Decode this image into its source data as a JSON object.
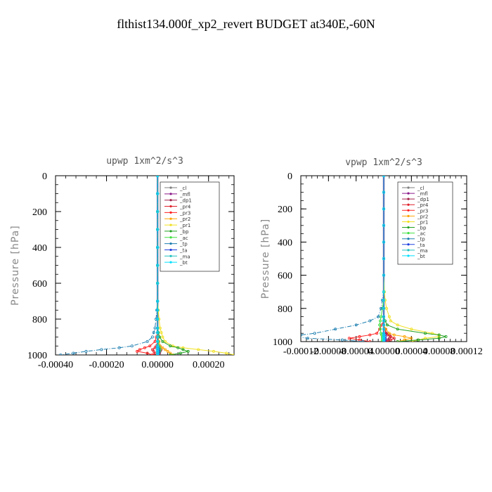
{
  "page": {
    "title": "flthist134.000f_xp2_revert  BUDGET at340E,-60N"
  },
  "chart_data": [
    {
      "type": "line",
      "subtitle": "upwp   1xm^2/s^3",
      "ylabel": "Pressure  [hPa]",
      "xlim": [
        -0.0004,
        0.0003
      ],
      "ylim": [
        1000,
        0
      ],
      "xticks": [
        -0.0004,
        -0.0002,
        0.0,
        0.0002
      ],
      "xtick_labels": [
        "-0.00040",
        "-0.00020",
        "0.00000",
        "0.00020"
      ],
      "yticks": [
        0,
        200,
        400,
        600,
        800,
        1000
      ],
      "ytick_labels": [
        "0",
        "200",
        "400",
        "600",
        "800",
        "1000"
      ],
      "legend_position": "top-right",
      "y": [
        0,
        100,
        200,
        300,
        400,
        500,
        600,
        700,
        750,
        800,
        850,
        875,
        900,
        925,
        950,
        960,
        970,
        980,
        990,
        1000
      ],
      "series": [
        {
          "name": "_cl",
          "color": "#7f7f7f",
          "marker": "+",
          "values": [
            0,
            0,
            0,
            0,
            0,
            0,
            0,
            0,
            0,
            0,
            0,
            0,
            0,
            0,
            0,
            0,
            0,
            0,
            0,
            0
          ]
        },
        {
          "name": "_mfl",
          "color": "#8b1a8b",
          "marker": "+",
          "values": [
            0,
            0,
            0,
            0,
            0,
            0,
            0,
            0,
            0,
            0,
            0,
            0,
            0,
            0,
            0,
            0,
            0,
            0,
            0,
            0
          ]
        },
        {
          "name": "_dp1",
          "color": "#a0204a",
          "marker": "+",
          "values": [
            0,
            0,
            0,
            0,
            0,
            0,
            0,
            0,
            0,
            0,
            0,
            0,
            2e-06,
            5e-06,
            1e-05,
            1.2e-05,
            1.4e-05,
            1e-05,
            8e-06,
            5e-06
          ]
        },
        {
          "name": "_pr4",
          "color": "#e0202a",
          "marker": "o",
          "values": [
            0,
            0,
            0,
            0,
            0,
            0,
            0,
            0,
            0,
            0,
            0,
            0,
            0,
            0,
            -5e-06,
            -1e-05,
            -2e-05,
            -1.5e-05,
            -1e-05,
            -2e-05
          ]
        },
        {
          "name": "_pr3",
          "color": "#ff2020",
          "marker": "v",
          "values": [
            0,
            0,
            0,
            0,
            0,
            0,
            0,
            0,
            0,
            0,
            0,
            0,
            -5e-06,
            -1e-05,
            -3e-05,
            -5e-05,
            -7e-05,
            -8e-05,
            -4e-05,
            -2e-05
          ]
        },
        {
          "name": "_pr2",
          "color": "#ffa500",
          "marker": "^",
          "values": [
            0,
            0,
            0,
            0,
            0,
            0,
            0,
            0,
            0,
            0,
            0,
            0,
            0,
            5e-06,
            1e-05,
            2e-05,
            3e-05,
            4e-05,
            5e-05,
            6e-05
          ]
        },
        {
          "name": "_pr1",
          "color": "#f0e020",
          "marker": "x",
          "values": [
            0,
            0,
            0,
            0,
            0,
            0,
            0,
            0,
            3e-06,
            6e-06,
            1e-05,
            1.5e-05,
            2e-05,
            3e-05,
            6e-05,
            0.0001,
            0.00016,
            0.00022,
            0.00027,
            0.0003
          ]
        },
        {
          "name": "_bp",
          "color": "#20a020",
          "marker": "x",
          "values": [
            0,
            0,
            0,
            0,
            0,
            0,
            0,
            0,
            0,
            0,
            0,
            3e-06,
            8e-06,
            2e-05,
            5e-05,
            8e-05,
            0.0001,
            0.00012,
            9e-05,
            5e-05
          ]
        },
        {
          "name": "_ac",
          "color": "#40e040",
          "marker": "o",
          "values": [
            0,
            0,
            0,
            0,
            0,
            0,
            0,
            0,
            0,
            0,
            0,
            0,
            0,
            2e-06,
            5e-06,
            8e-06,
            1e-05,
            8e-06,
            5e-06,
            3e-06
          ]
        },
        {
          "name": "_tp",
          "color": "#1e7fb0",
          "marker": "*",
          "values": [
            0,
            0,
            0,
            0,
            0,
            0,
            0,
            0,
            -3e-06,
            -6e-06,
            -1e-05,
            -1.5e-05,
            -2e-05,
            -4e-05,
            -0.0001,
            -0.00015,
            -0.00022,
            -0.00028,
            -0.00033,
            -0.00038
          ]
        },
        {
          "name": "_ta",
          "color": "#2040e0",
          "marker": "+",
          "values": [
            0,
            0,
            0,
            0,
            0,
            0,
            0,
            0,
            0,
            0,
            0,
            0,
            0,
            0,
            0,
            2e-06,
            4e-06,
            6e-06,
            4e-06,
            2e-06
          ]
        },
        {
          "name": "_ma",
          "color": "#20c0c0",
          "marker": "-",
          "values": [
            0,
            0,
            0,
            0,
            0,
            0,
            0,
            0,
            0,
            0,
            0,
            0,
            0,
            0,
            0,
            0,
            0,
            0,
            0,
            0
          ]
        },
        {
          "name": "_bt",
          "color": "#00e0ff",
          "marker": "o",
          "values": [
            0,
            0,
            0,
            0,
            0,
            0,
            0,
            0,
            0,
            0,
            0,
            0,
            0,
            0,
            0,
            0,
            0,
            0,
            0,
            0
          ]
        }
      ]
    },
    {
      "type": "line",
      "subtitle": "vpwp   1xm^2/s^3",
      "ylabel": "Pressure  [hPa]",
      "xlim": [
        -0.00012,
        0.00012
      ],
      "ylim": [
        1000,
        0
      ],
      "xticks": [
        -0.00012,
        -8e-05,
        -4e-05,
        0.0,
        4e-05,
        8e-05,
        0.00012
      ],
      "xtick_labels": [
        "-0.00012",
        "-0.00008",
        "-0.00004",
        "0.00000",
        "0.00004",
        "0.00008",
        "0.00012"
      ],
      "yticks": [
        0,
        200,
        400,
        600,
        800,
        1000
      ],
      "ytick_labels": [
        "0",
        "200",
        "400",
        "600",
        "800",
        "1000"
      ],
      "legend_position": "top-right",
      "y": [
        0,
        100,
        200,
        300,
        400,
        500,
        600,
        700,
        750,
        800,
        850,
        875,
        900,
        925,
        950,
        960,
        970,
        980,
        990,
        1000
      ],
      "series": [
        {
          "name": "_cl",
          "color": "#7f7f7f",
          "marker": "+",
          "values": [
            0,
            0,
            0,
            0,
            0,
            0,
            0,
            0,
            0,
            0,
            0,
            0,
            0,
            0,
            0,
            0,
            0,
            0,
            0,
            0
          ]
        },
        {
          "name": "_mfl",
          "color": "#8b1a8b",
          "marker": "+",
          "values": [
            0,
            0,
            0,
            0,
            0,
            0,
            0,
            0,
            0,
            0,
            0,
            0,
            0,
            0,
            0,
            0,
            0,
            0,
            0,
            0
          ]
        },
        {
          "name": "_dp1",
          "color": "#a0204a",
          "marker": "+",
          "values": [
            0,
            0,
            0,
            0,
            0,
            0,
            0,
            0,
            0,
            0,
            0,
            0,
            0,
            2e-06,
            4e-06,
            8e-06,
            1e-05,
            8e-06,
            5e-06,
            3e-06
          ]
        },
        {
          "name": "_pr4",
          "color": "#e0202a",
          "marker": "o",
          "values": [
            0,
            0,
            0,
            0,
            0,
            0,
            0,
            0,
            0,
            0,
            0,
            0,
            0,
            2e-06,
            3e-06,
            5e-06,
            1e-05,
            1.5e-05,
            1e-05,
            5e-06
          ]
        },
        {
          "name": "_pr3",
          "color": "#ff2020",
          "marker": "v",
          "values": [
            0,
            0,
            0,
            0,
            0,
            0,
            0,
            0,
            0,
            0,
            0,
            0,
            -3e-06,
            -6e-06,
            -1e-05,
            -2e-05,
            -3.5e-05,
            -5e-05,
            -3.5e-05,
            -2e-05
          ]
        },
        {
          "name": "_pr2",
          "color": "#ffa500",
          "marker": "^",
          "values": [
            0,
            0,
            0,
            0,
            0,
            0,
            0,
            0,
            0,
            0,
            0,
            0,
            0,
            3e-06,
            8e-06,
            1.5e-05,
            3e-05,
            4e-05,
            3e-05,
            2e-05
          ]
        },
        {
          "name": "_pr1",
          "color": "#f0e020",
          "marker": "x",
          "values": [
            0,
            0,
            0,
            0,
            0,
            0,
            0,
            1e-06,
            2e-06,
            4e-06,
            8e-06,
            1e-05,
            2e-05,
            4e-05,
            7e-05,
            8e-05,
            8e-05,
            6e-05,
            5e-05,
            4e-05
          ]
        },
        {
          "name": "_bp",
          "color": "#20a020",
          "marker": "x",
          "values": [
            0,
            0,
            0,
            0,
            0,
            0,
            0,
            0,
            0,
            0,
            0,
            2e-06,
            5e-06,
            2e-05,
            6e-05,
            8e-05,
            9e-05,
            8e-05,
            5e-05,
            2e-05
          ]
        },
        {
          "name": "_ac",
          "color": "#40e040",
          "marker": "o",
          "values": [
            0,
            0,
            0,
            0,
            0,
            0,
            0,
            0,
            0,
            -2e-06,
            -4e-06,
            -5e-06,
            -6e-06,
            -5e-06,
            -4e-06,
            -3e-06,
            -2e-06,
            -2e-06,
            -2e-06,
            -2e-06
          ]
        },
        {
          "name": "_tp",
          "color": "#1e7fb0",
          "marker": "*",
          "values": [
            0,
            0,
            0,
            0,
            0,
            0,
            0,
            0,
            -2e-06,
            -4e-06,
            -8e-06,
            -2e-05,
            -4e-05,
            -7e-05,
            -0.0001,
            -0.00012,
            -0.00013,
            -0.00011,
            -6e-05,
            -3e-05
          ]
        },
        {
          "name": "_ta",
          "color": "#2040e0",
          "marker": "+",
          "values": [
            0,
            0,
            0,
            0,
            0,
            0,
            0,
            0,
            0,
            0,
            0,
            0,
            0,
            0,
            0,
            2e-06,
            2e-06,
            2e-06,
            2e-06,
            1e-06
          ]
        },
        {
          "name": "_ma",
          "color": "#20c0c0",
          "marker": "-",
          "values": [
            0,
            0,
            0,
            0,
            0,
            0,
            0,
            0,
            0,
            0,
            0,
            0,
            0,
            0,
            0,
            0,
            0,
            0,
            0,
            0
          ]
        },
        {
          "name": "_bt",
          "color": "#00e0ff",
          "marker": "o",
          "values": [
            0,
            0,
            0,
            0,
            0,
            0,
            0,
            0,
            0,
            0,
            0,
            0,
            0,
            0,
            0,
            0,
            0,
            0,
            0,
            0
          ]
        }
      ]
    }
  ]
}
